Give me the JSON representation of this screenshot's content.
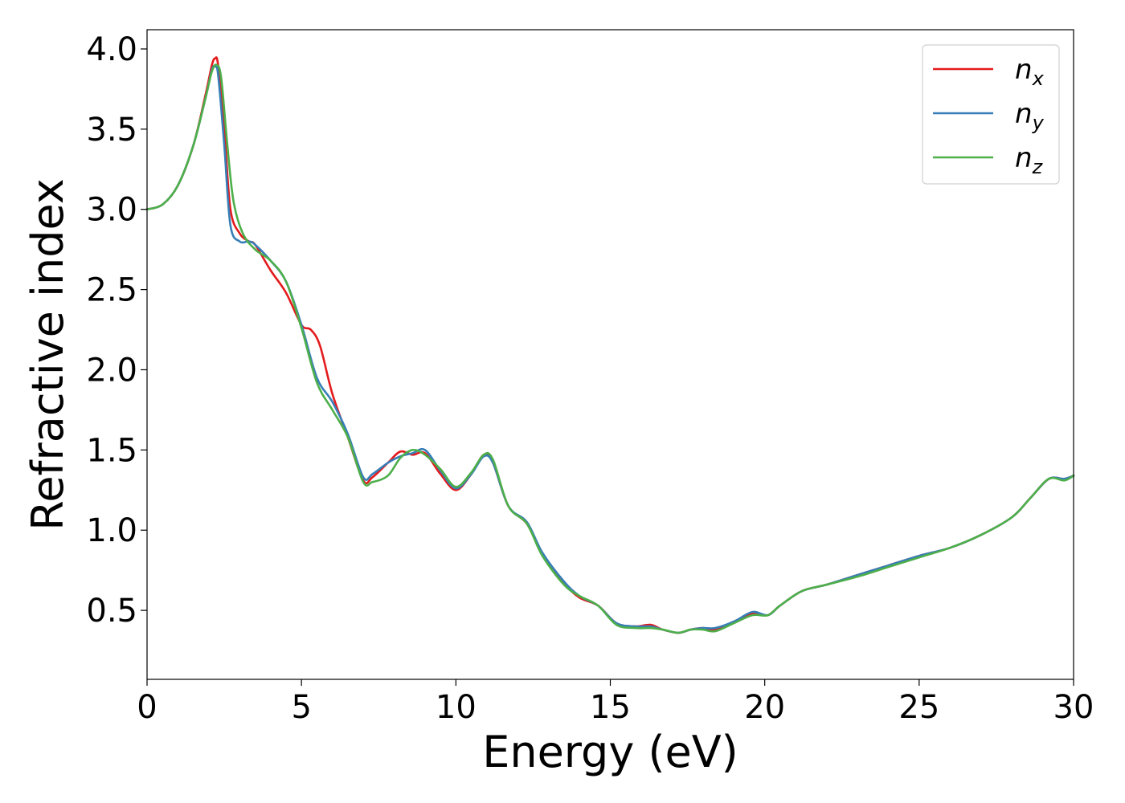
{
  "chart_data": {
    "type": "line",
    "xlabel": "Energy (eV)",
    "ylabel": "Refractive index",
    "xlim": [
      0,
      30
    ],
    "ylim": [
      0.07,
      4.12
    ],
    "xticks": [
      0,
      5,
      10,
      15,
      20,
      25,
      30
    ],
    "xtick_labels": [
      "0",
      "5",
      "10",
      "15",
      "20",
      "25",
      "30"
    ],
    "yticks": [
      0.5,
      1.0,
      1.5,
      2.0,
      2.5,
      3.0,
      3.5,
      4.0
    ],
    "ytick_labels": [
      "0.5",
      "1.0",
      "1.5",
      "2.0",
      "2.5",
      "3.0",
      "3.5",
      "4.0"
    ],
    "grid": false,
    "legend_position": "top-right",
    "series": [
      {
        "name": "n_x",
        "label_base": "n",
        "label_sub": "x",
        "color": "#e41a1c",
        "points": [
          [
            0,
            3.0
          ],
          [
            0.5,
            3.03
          ],
          [
            1.0,
            3.15
          ],
          [
            1.5,
            3.4
          ],
          [
            1.9,
            3.72
          ],
          [
            2.1,
            3.9
          ],
          [
            2.2,
            3.94
          ],
          [
            2.3,
            3.9
          ],
          [
            2.5,
            3.5
          ],
          [
            2.7,
            3.0
          ],
          [
            3.0,
            2.85
          ],
          [
            3.3,
            2.8
          ],
          [
            3.5,
            2.78
          ],
          [
            4.0,
            2.62
          ],
          [
            4.5,
            2.48
          ],
          [
            5.0,
            2.28
          ],
          [
            5.3,
            2.25
          ],
          [
            5.6,
            2.15
          ],
          [
            6.0,
            1.85
          ],
          [
            6.5,
            1.58
          ],
          [
            7.0,
            1.31
          ],
          [
            7.3,
            1.33
          ],
          [
            7.8,
            1.42
          ],
          [
            8.2,
            1.49
          ],
          [
            8.6,
            1.47
          ],
          [
            9.0,
            1.48
          ],
          [
            9.5,
            1.35
          ],
          [
            10.0,
            1.25
          ],
          [
            10.5,
            1.35
          ],
          [
            10.9,
            1.47
          ],
          [
            11.2,
            1.42
          ],
          [
            11.7,
            1.15
          ],
          [
            12.3,
            1.04
          ],
          [
            12.8,
            0.85
          ],
          [
            13.5,
            0.67
          ],
          [
            14.0,
            0.58
          ],
          [
            14.6,
            0.53
          ],
          [
            15.2,
            0.42
          ],
          [
            15.8,
            0.4
          ],
          [
            16.3,
            0.41
          ],
          [
            16.7,
            0.38
          ],
          [
            17.2,
            0.36
          ],
          [
            17.6,
            0.38
          ],
          [
            18.0,
            0.39
          ],
          [
            18.4,
            0.38
          ],
          [
            19.0,
            0.43
          ],
          [
            19.6,
            0.48
          ],
          [
            20.1,
            0.47
          ],
          [
            20.5,
            0.53
          ],
          [
            21.2,
            0.62
          ],
          [
            22.0,
            0.66
          ],
          [
            23.0,
            0.72
          ],
          [
            24.0,
            0.78
          ],
          [
            25.0,
            0.84
          ],
          [
            26.0,
            0.89
          ],
          [
            27.0,
            0.97
          ],
          [
            28.0,
            1.08
          ],
          [
            28.6,
            1.2
          ],
          [
            29.2,
            1.32
          ],
          [
            29.7,
            1.32
          ],
          [
            30.0,
            1.34
          ]
        ]
      },
      {
        "name": "n_y",
        "label_base": "n",
        "label_sub": "y",
        "color": "#377eb8",
        "points": [
          [
            0,
            3.0
          ],
          [
            0.5,
            3.03
          ],
          [
            1.0,
            3.15
          ],
          [
            1.5,
            3.4
          ],
          [
            1.9,
            3.7
          ],
          [
            2.1,
            3.87
          ],
          [
            2.2,
            3.89
          ],
          [
            2.3,
            3.84
          ],
          [
            2.5,
            3.4
          ],
          [
            2.7,
            2.9
          ],
          [
            3.0,
            2.8
          ],
          [
            3.3,
            2.8
          ],
          [
            3.5,
            2.78
          ],
          [
            4.0,
            2.68
          ],
          [
            4.5,
            2.55
          ],
          [
            5.0,
            2.28
          ],
          [
            5.5,
            1.95
          ],
          [
            6.0,
            1.8
          ],
          [
            6.5,
            1.6
          ],
          [
            7.0,
            1.33
          ],
          [
            7.3,
            1.35
          ],
          [
            7.8,
            1.42
          ],
          [
            8.2,
            1.46
          ],
          [
            8.6,
            1.48
          ],
          [
            9.0,
            1.5
          ],
          [
            9.5,
            1.37
          ],
          [
            10.0,
            1.26
          ],
          [
            10.5,
            1.35
          ],
          [
            10.9,
            1.46
          ],
          [
            11.2,
            1.42
          ],
          [
            11.7,
            1.15
          ],
          [
            12.3,
            1.05
          ],
          [
            12.8,
            0.86
          ],
          [
            13.5,
            0.68
          ],
          [
            14.0,
            0.59
          ],
          [
            14.6,
            0.53
          ],
          [
            15.2,
            0.42
          ],
          [
            15.8,
            0.4
          ],
          [
            16.3,
            0.4
          ],
          [
            16.7,
            0.38
          ],
          [
            17.2,
            0.36
          ],
          [
            17.6,
            0.38
          ],
          [
            18.0,
            0.39
          ],
          [
            18.4,
            0.39
          ],
          [
            19.0,
            0.43
          ],
          [
            19.6,
            0.49
          ],
          [
            20.1,
            0.47
          ],
          [
            20.5,
            0.53
          ],
          [
            21.2,
            0.62
          ],
          [
            22.0,
            0.66
          ],
          [
            23.0,
            0.72
          ],
          [
            24.0,
            0.78
          ],
          [
            25.0,
            0.84
          ],
          [
            26.0,
            0.89
          ],
          [
            27.0,
            0.97
          ],
          [
            28.0,
            1.08
          ],
          [
            28.6,
            1.2
          ],
          [
            29.2,
            1.32
          ],
          [
            29.7,
            1.32
          ],
          [
            30.0,
            1.34
          ]
        ]
      },
      {
        "name": "n_z",
        "label_base": "n",
        "label_sub": "z",
        "color": "#4daf4a",
        "points": [
          [
            0,
            3.0
          ],
          [
            0.5,
            3.03
          ],
          [
            1.0,
            3.15
          ],
          [
            1.5,
            3.4
          ],
          [
            1.9,
            3.7
          ],
          [
            2.1,
            3.86
          ],
          [
            2.25,
            3.9
          ],
          [
            2.4,
            3.82
          ],
          [
            2.6,
            3.4
          ],
          [
            2.8,
            3.05
          ],
          [
            3.1,
            2.85
          ],
          [
            3.5,
            2.75
          ],
          [
            4.0,
            2.68
          ],
          [
            4.5,
            2.55
          ],
          [
            5.0,
            2.26
          ],
          [
            5.5,
            1.92
          ],
          [
            6.0,
            1.75
          ],
          [
            6.5,
            1.58
          ],
          [
            7.0,
            1.3
          ],
          [
            7.3,
            1.3
          ],
          [
            7.8,
            1.34
          ],
          [
            8.2,
            1.45
          ],
          [
            8.6,
            1.5
          ],
          [
            9.0,
            1.47
          ],
          [
            9.5,
            1.38
          ],
          [
            10.0,
            1.27
          ],
          [
            10.5,
            1.36
          ],
          [
            10.9,
            1.47
          ],
          [
            11.2,
            1.44
          ],
          [
            11.7,
            1.15
          ],
          [
            12.3,
            1.04
          ],
          [
            12.8,
            0.84
          ],
          [
            13.5,
            0.66
          ],
          [
            14.0,
            0.59
          ],
          [
            14.6,
            0.53
          ],
          [
            15.2,
            0.41
          ],
          [
            15.8,
            0.39
          ],
          [
            16.3,
            0.39
          ],
          [
            16.7,
            0.38
          ],
          [
            17.2,
            0.36
          ],
          [
            17.6,
            0.38
          ],
          [
            18.0,
            0.38
          ],
          [
            18.4,
            0.37
          ],
          [
            19.0,
            0.42
          ],
          [
            19.6,
            0.47
          ],
          [
            20.1,
            0.47
          ],
          [
            20.5,
            0.53
          ],
          [
            21.2,
            0.62
          ],
          [
            22.0,
            0.66
          ],
          [
            23.0,
            0.71
          ],
          [
            24.0,
            0.77
          ],
          [
            25.0,
            0.83
          ],
          [
            26.0,
            0.89
          ],
          [
            27.0,
            0.97
          ],
          [
            28.0,
            1.08
          ],
          [
            28.6,
            1.2
          ],
          [
            29.2,
            1.32
          ],
          [
            29.7,
            1.31
          ],
          [
            30.0,
            1.34
          ]
        ]
      }
    ]
  }
}
